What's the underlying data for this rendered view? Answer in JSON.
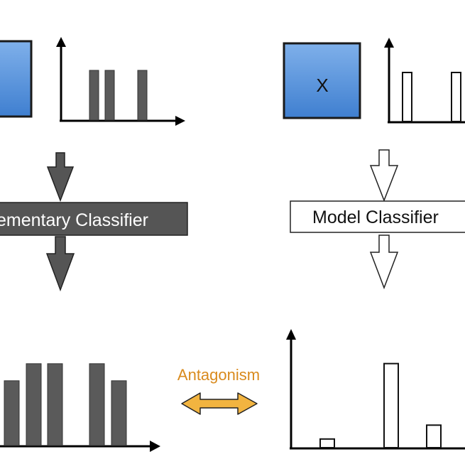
{
  "left_panel": {
    "classifier_label": "ementary Classifier",
    "top_hist": [
      1,
      1,
      1
    ],
    "bottom_hist": [
      0.76,
      0.96,
      0.96,
      0.96,
      0.76
    ]
  },
  "right_panel": {
    "input_label": "X",
    "classifier_label": "Model Classifier",
    "top_hist": [
      1,
      1
    ],
    "bottom_hist": [
      0.1,
      0.97,
      0.26
    ]
  },
  "relation": {
    "label": "Antagonism",
    "color": "#d98a1d",
    "arrow_fill": "#f2b440"
  },
  "colors": {
    "input_box_top": "#7fb0ea",
    "input_box_bottom": "#3f7fd0",
    "dark_bar": "#5a5a5a",
    "classifier_dark": "#555555"
  }
}
